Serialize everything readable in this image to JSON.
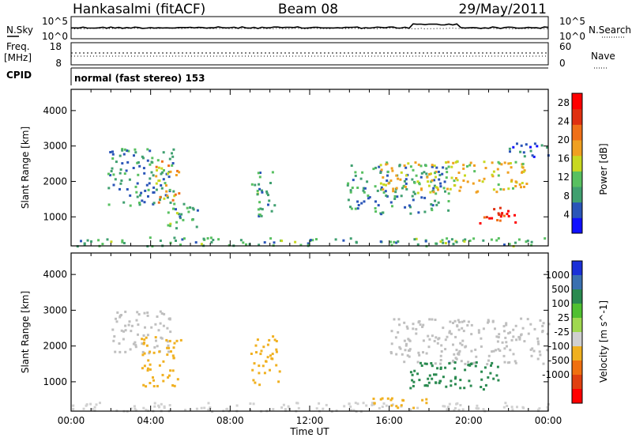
{
  "header": {
    "station": "Hankasalmi (fitACF)",
    "beam": "Beam 08",
    "date": "29/May/2011"
  },
  "strips": {
    "nsky_label": "N.Sky",
    "nsearch_label": "N.Search",
    "noise_ticks_left": [
      "10^5",
      "10^0"
    ],
    "noise_ticks_right": [
      "10^5",
      "10^0"
    ],
    "freq_label": "Freq.",
    "freq_unit": "[MHz]",
    "freq_ticks": [
      "18",
      "8"
    ],
    "nave_label": "Nave",
    "nave_ticks": [
      "60",
      "0"
    ],
    "cpid_label": "CPID",
    "cpid_text": "normal (fast stereo) 153"
  },
  "colors": {
    "axis": "#000000",
    "background": "#ffffff",
    "ground_scatter": "#bfbfbf",
    "power_scale": [
      "#1010ff",
      "#2a55b8",
      "#40a070",
      "#58c060",
      "#c8d820",
      "#f0a020",
      "#f07018",
      "#e03010",
      "#ff0000"
    ],
    "velocity_scale": [
      "#1a30d8",
      "#3a70b0",
      "#2a8a50",
      "#50c030",
      "#a0d850",
      "#d0d0d0",
      "#f0b020",
      "#f07010",
      "#e04010",
      "#ff0000"
    ]
  },
  "chart_data": [
    {
      "type": "heatmap",
      "name": "power",
      "ylabel": "Slant Range [km]",
      "xlabel": "",
      "x_ticks": [
        "00:00",
        "04:00",
        "08:00",
        "12:00",
        "16:00",
        "20:00",
        "00:00"
      ],
      "xlim_hours": [
        0,
        24
      ],
      "y_ticks": [
        1000,
        2000,
        3000,
        4000
      ],
      "ylim": [
        180,
        4600
      ],
      "colorbar_label": "Power [dB]",
      "colorbar_ticks": [
        4,
        8,
        12,
        16,
        20,
        24,
        28
      ],
      "colorbar_range": [
        0,
        30
      ],
      "regions": [
        {
          "t": [
            0.0,
            24.0
          ],
          "r": [
            200,
            450
          ],
          "value": 10
        },
        {
          "t": [
            1.8,
            5.2
          ],
          "r": [
            1300,
            3000
          ],
          "value": 8
        },
        {
          "t": [
            4.2,
            5.4
          ],
          "r": [
            1400,
            2600
          ],
          "value": 18
        },
        {
          "t": [
            4.8,
            6.5
          ],
          "r": [
            700,
            1400
          ],
          "value": 10
        },
        {
          "t": [
            9.0,
            10.2
          ],
          "r": [
            900,
            2300
          ],
          "value": 10
        },
        {
          "t": [
            13.8,
            19.0
          ],
          "r": [
            1100,
            2500
          ],
          "value": 8
        },
        {
          "t": [
            15.5,
            23.0
          ],
          "r": [
            1700,
            2600
          ],
          "value": 16
        },
        {
          "t": [
            20.5,
            22.3
          ],
          "r": [
            800,
            1300
          ],
          "value": 26
        },
        {
          "t": [
            22.0,
            24.0
          ],
          "r": [
            2700,
            3100
          ],
          "value": 6
        }
      ]
    },
    {
      "type": "heatmap",
      "name": "velocity",
      "ylabel": "Slant Range [km]",
      "xlabel": "Time UT",
      "x_ticks": [
        "00:00",
        "04:00",
        "08:00",
        "12:00",
        "16:00",
        "20:00",
        "00:00"
      ],
      "xlim_hours": [
        0,
        24
      ],
      "y_ticks": [
        1000,
        2000,
        3000,
        4000
      ],
      "ylim": [
        180,
        4600
      ],
      "colorbar_label": "Velocity [m s^-1]",
      "colorbar_ticks": [
        "1000",
        "500",
        "100",
        "25",
        "-25",
        "-100",
        "-500",
        "-1000"
      ],
      "ground_scatter_color": "grey",
      "regions": [
        {
          "t": [
            0.0,
            24.0
          ],
          "r": [
            200,
            450
          ],
          "value": -60
        },
        {
          "t": [
            2.0,
            5.0
          ],
          "r": [
            1800,
            3000
          ],
          "value": 0
        },
        {
          "t": [
            3.5,
            5.5
          ],
          "r": [
            900,
            2300
          ],
          "value": -200
        },
        {
          "t": [
            9.0,
            10.5
          ],
          "r": [
            900,
            2300
          ],
          "value": -250
        },
        {
          "t": [
            15.0,
            18.0
          ],
          "r": [
            300,
            600
          ],
          "value": -200
        },
        {
          "t": [
            16.0,
            24.0
          ],
          "r": [
            1500,
            2800
          ],
          "value": 0
        },
        {
          "t": [
            17.0,
            21.5
          ],
          "r": [
            800,
            1600
          ],
          "value": 200
        }
      ]
    }
  ]
}
